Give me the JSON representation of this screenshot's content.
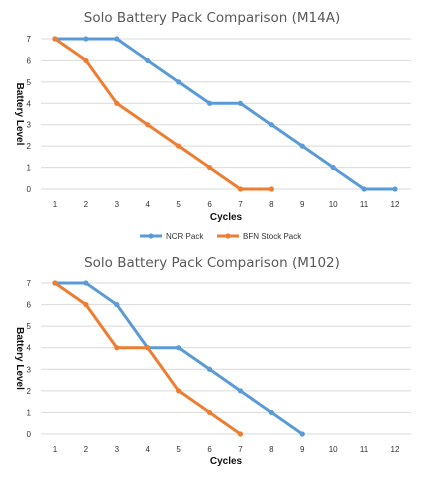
{
  "chart_data": [
    {
      "type": "line",
      "title": "Solo Battery Pack Comparison (M14A)",
      "xlabel": "Cycles",
      "ylabel": "Battery Level",
      "x": [
        1,
        2,
        3,
        4,
        5,
        6,
        7,
        8,
        9,
        10,
        11,
        12
      ],
      "ylim": [
        0,
        7
      ],
      "yticks": [
        0,
        1,
        2,
        3,
        4,
        5,
        6,
        7
      ],
      "grid": true,
      "legend": "bottom",
      "series": [
        {
          "name": "NCR Pack",
          "color": "#5b9bd5",
          "values": [
            7,
            7,
            7,
            6,
            5,
            4,
            4,
            3,
            2,
            1,
            0,
            0
          ]
        },
        {
          "name": "BFN Stock Pack",
          "color": "#ed7d31",
          "values": [
            7,
            6,
            4,
            3,
            2,
            1,
            0,
            0,
            null,
            null,
            null,
            null
          ]
        }
      ]
    },
    {
      "type": "line",
      "title": "Solo Battery Pack Comparison (M102)",
      "xlabel": "Cycles",
      "ylabel": "Battery Level",
      "x": [
        1,
        2,
        3,
        4,
        5,
        6,
        7,
        8,
        9,
        10,
        11,
        12
      ],
      "ylim": [
        0,
        7
      ],
      "yticks": [
        0,
        1,
        2,
        3,
        4,
        5,
        6,
        7
      ],
      "grid": true,
      "legend": "none",
      "series": [
        {
          "color": "#5b9bd5",
          "values": [
            7,
            7,
            6,
            4,
            4,
            3,
            2,
            1,
            0,
            null,
            null,
            null
          ]
        },
        {
          "color": "#ed7d31",
          "values": [
            7,
            6,
            4,
            4,
            2,
            1,
            0,
            null,
            null,
            null,
            null,
            null
          ]
        }
      ]
    }
  ]
}
